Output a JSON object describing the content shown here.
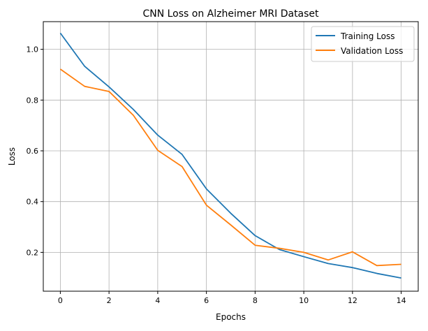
{
  "chart_data": {
    "type": "line",
    "title": "CNN Loss on Alzheimer MRI Dataset",
    "xlabel": "Epochs",
    "ylabel": "Loss",
    "x": [
      0,
      1,
      2,
      3,
      4,
      5,
      6,
      7,
      8,
      9,
      10,
      11,
      12,
      13,
      14
    ],
    "xlim": [
      -0.7,
      14.7
    ],
    "ylim": [
      0.047,
      1.109
    ],
    "xticks": [
      0,
      2,
      4,
      6,
      8,
      10,
      12,
      14
    ],
    "yticks": [
      0.2,
      0.4,
      0.6,
      0.8,
      1.0
    ],
    "ytick_labels": [
      "0.2",
      "0.4",
      "0.6",
      "0.8",
      "1.0"
    ],
    "grid": true,
    "legend_position": "top-right",
    "series": [
      {
        "name": "Training Loss",
        "color": "#1f77b4",
        "values": [
          1.064,
          0.933,
          0.852,
          0.763,
          0.662,
          0.586,
          0.45,
          0.354,
          0.266,
          0.211,
          0.183,
          0.156,
          0.14,
          0.117,
          0.099
        ]
      },
      {
        "name": "Validation Loss",
        "color": "#ff7f0e",
        "values": [
          0.922,
          0.854,
          0.834,
          0.74,
          0.602,
          0.538,
          0.386,
          0.308,
          0.228,
          0.216,
          0.2,
          0.17,
          0.202,
          0.148,
          0.153
        ]
      }
    ]
  }
}
